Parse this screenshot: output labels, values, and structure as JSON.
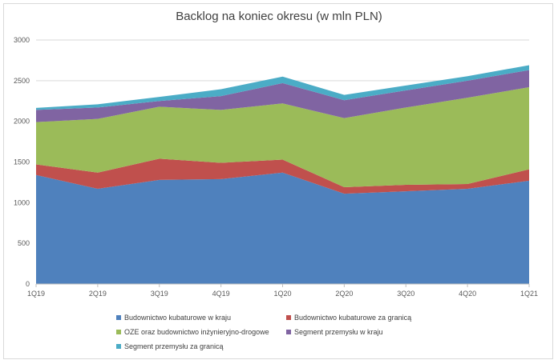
{
  "chart_data": {
    "type": "area",
    "stacked": true,
    "title": "Backlog na koniec okresu (w mln PLN)",
    "xlabel": "",
    "ylabel": "",
    "ylim": [
      0,
      3000
    ],
    "yticks": [
      0,
      500,
      1000,
      1500,
      2000,
      2500,
      3000
    ],
    "grid": true,
    "legend_position": "bottom",
    "categories": [
      "1Q19",
      "2Q19",
      "3Q19",
      "4Q19",
      "1Q20",
      "2Q20",
      "3Q20",
      "4Q20",
      "1Q21"
    ],
    "series": [
      {
        "name": "Budownictwo kubaturowe w kraju",
        "color": "#4f81bd",
        "values": [
          1340,
          1170,
          1280,
          1290,
          1370,
          1110,
          1140,
          1170,
          1270
        ]
      },
      {
        "name": "Budownictwo kubaturowe za granicą",
        "color": "#c0504d",
        "values": [
          130,
          200,
          260,
          200,
          160,
          80,
          80,
          60,
          140
        ]
      },
      {
        "name": "OZE oraz budownictwo inżynieryjno-drogowe",
        "color": "#9bbb59",
        "values": [
          520,
          660,
          640,
          650,
          690,
          850,
          950,
          1060,
          1010
        ]
      },
      {
        "name": "Segment przemysłu w kraju",
        "color": "#8064a2",
        "values": [
          150,
          140,
          70,
          170,
          250,
          220,
          210,
          210,
          210
        ]
      },
      {
        "name": "Segment przemysłu za granicą",
        "color": "#4bacc6",
        "values": [
          25,
          40,
          50,
          85,
          80,
          65,
          60,
          55,
          60
        ]
      }
    ]
  }
}
